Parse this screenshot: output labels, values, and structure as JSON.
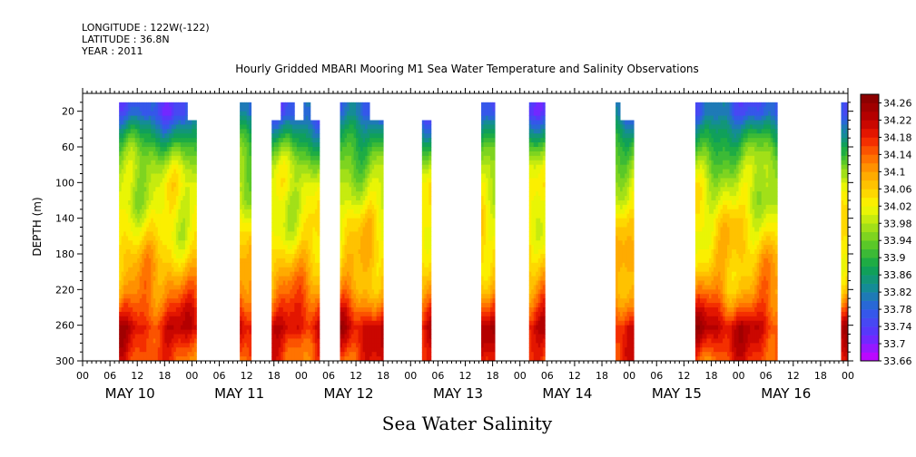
{
  "header": {
    "longitude": "LONGITUDE : 122W(-122)",
    "latitude": "LATITUDE : 36.8N",
    "year": "YEAR : 2011"
  },
  "chart_data": {
    "type": "heatmap",
    "title": "Hourly Gridded MBARI Mooring M1 Sea Water Temperature and Salinity Observations",
    "xlabel": "Sea Water Salinity",
    "ylabel": "DEPTH (m)",
    "x_unit": "hours from 2011-05-10 00:00",
    "xlim": [
      0,
      168
    ],
    "ylim": [
      300,
      0
    ],
    "y_reversed": true,
    "y_ticks": [
      20,
      60,
      100,
      140,
      180,
      220,
      260,
      300
    ],
    "x_hour_ticks": [
      "00",
      "06",
      "12",
      "18",
      "00",
      "06",
      "12",
      "18",
      "00",
      "06",
      "12",
      "18",
      "00",
      "06",
      "12",
      "18",
      "00",
      "06",
      "12",
      "18",
      "00",
      "06",
      "12",
      "18",
      "00",
      "06",
      "12",
      "18",
      "00"
    ],
    "day_labels": [
      "MAY 10",
      "MAY 11",
      "MAY 12",
      "MAY 13",
      "MAY 14",
      "MAY 15",
      "MAY 16"
    ],
    "colorbar": {
      "min": 33.66,
      "max": 34.28,
      "step": 0.02,
      "labels": [
        "34.26",
        "34.22",
        "34.18",
        "34.14",
        "34.1",
        "34.06",
        "34.02",
        "33.98",
        "33.94",
        "33.9",
        "33.86",
        "33.82",
        "33.78",
        "33.74",
        "33.7",
        "33.66"
      ]
    },
    "depth_levels": [
      20,
      40,
      60,
      80,
      100,
      120,
      140,
      160,
      180,
      200,
      220,
      240,
      260,
      280,
      300
    ],
    "mean_profile": [
      33.77,
      33.85,
      33.92,
      33.97,
      34.0,
      34.01,
      34.03,
      34.04,
      34.06,
      34.08,
      34.11,
      34.16,
      34.21,
      34.18,
      34.15
    ],
    "data_segments": [
      {
        "start": 8,
        "end": 23,
        "top_depth": 20
      },
      {
        "start": 23,
        "end": 25,
        "top_depth": 40
      },
      {
        "start": 34.5,
        "end": 37,
        "top_depth": 20
      },
      {
        "start": 41.5,
        "end": 43.5,
        "top_depth": 40
      },
      {
        "start": 43.5,
        "end": 46.5,
        "top_depth": 20
      },
      {
        "start": 46.5,
        "end": 48.5,
        "top_depth": 40
      },
      {
        "start": 48.5,
        "end": 50,
        "top_depth": 20
      },
      {
        "start": 50,
        "end": 52,
        "top_depth": 40
      },
      {
        "start": 56.5,
        "end": 63,
        "top_depth": 20
      },
      {
        "start": 63,
        "end": 66,
        "top_depth": 40
      },
      {
        "start": 74.5,
        "end": 76.5,
        "top_depth": 40
      },
      {
        "start": 87.5,
        "end": 90.5,
        "top_depth": 20
      },
      {
        "start": 98,
        "end": 101.5,
        "top_depth": 20
      },
      {
        "start": 117,
        "end": 118,
        "top_depth": 20
      },
      {
        "start": 118,
        "end": 121,
        "top_depth": 40
      },
      {
        "start": 134.5,
        "end": 152.5,
        "top_depth": 20
      },
      {
        "start": 166.5,
        "end": 169.5,
        "top_depth": 20
      }
    ]
  }
}
